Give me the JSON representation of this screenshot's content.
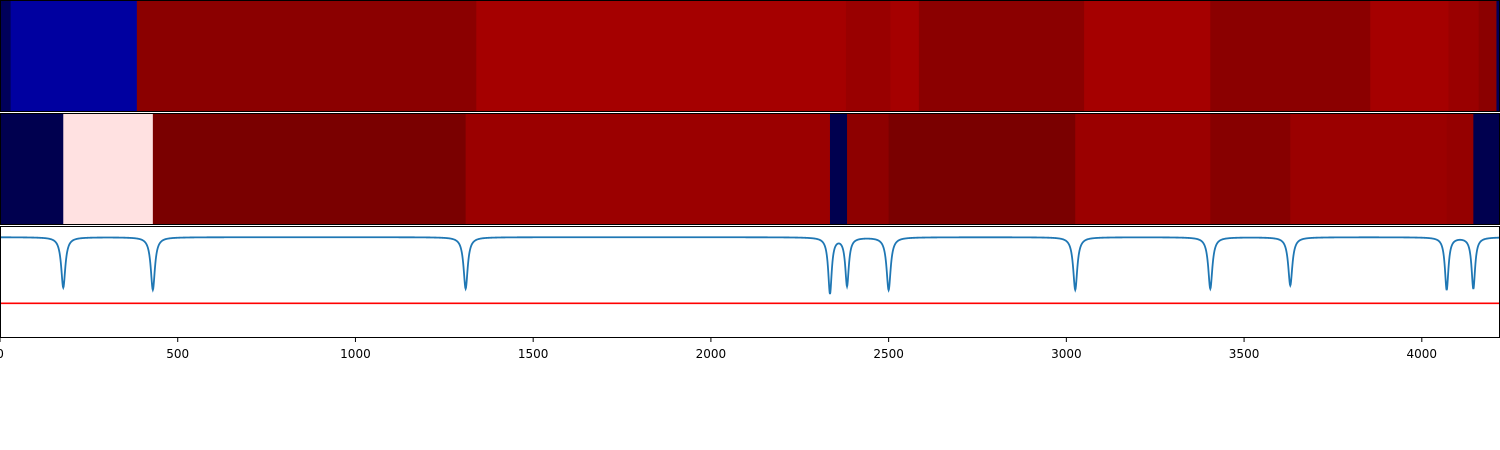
{
  "chart_data": {
    "type": "heatmap",
    "title": "",
    "xlabel": "",
    "ylabel": "",
    "xlim": [
      0,
      4220
    ],
    "x_ticks": [
      0,
      500,
      1000,
      1500,
      2000,
      2500,
      3000,
      3500,
      4000
    ],
    "x_tick_labels": [
      "0",
      "500",
      "1000",
      "1500",
      "2000",
      "2500",
      "3000",
      "3500",
      "4000"
    ],
    "grid": false,
    "legend": "none",
    "panels": [
      {
        "type": "heatmap-strip",
        "segments": [
          {
            "start": 0,
            "end": 30,
            "color": "#00005a"
          },
          {
            "start": 30,
            "end": 385,
            "color": "#0000a0"
          },
          {
            "start": 385,
            "end": 1340,
            "color": "#8b0000"
          },
          {
            "start": 1340,
            "end": 2380,
            "color": "#a50000"
          },
          {
            "start": 2380,
            "end": 2505,
            "color": "#990000"
          },
          {
            "start": 2505,
            "end": 2585,
            "color": "#a50000"
          },
          {
            "start": 2585,
            "end": 3050,
            "color": "#8b0000"
          },
          {
            "start": 3050,
            "end": 3405,
            "color": "#a50000"
          },
          {
            "start": 3405,
            "end": 3855,
            "color": "#8b0000"
          },
          {
            "start": 3855,
            "end": 4075,
            "color": "#a50000"
          },
          {
            "start": 4075,
            "end": 4160,
            "color": "#9a0000"
          },
          {
            "start": 4160,
            "end": 4210,
            "color": "#8b0000"
          },
          {
            "start": 4210,
            "end": 4220,
            "color": "#00005a"
          }
        ]
      },
      {
        "type": "heatmap-strip",
        "segments": [
          {
            "start": 0,
            "end": 178,
            "color": "#00004f"
          },
          {
            "start": 178,
            "end": 430,
            "color": "#ffe1e1"
          },
          {
            "start": 430,
            "end": 1310,
            "color": "#7a0000"
          },
          {
            "start": 1310,
            "end": 2335,
            "color": "#9b0000"
          },
          {
            "start": 2335,
            "end": 2383,
            "color": "#00004f"
          },
          {
            "start": 2383,
            "end": 2500,
            "color": "#8e0000"
          },
          {
            "start": 2500,
            "end": 3025,
            "color": "#7a0000"
          },
          {
            "start": 3025,
            "end": 3405,
            "color": "#9b0000"
          },
          {
            "start": 3405,
            "end": 3630,
            "color": "#870000"
          },
          {
            "start": 3630,
            "end": 4070,
            "color": "#9b0000"
          },
          {
            "start": 4070,
            "end": 4145,
            "color": "#950000"
          },
          {
            "start": 4145,
            "end": 4220,
            "color": "#00004f"
          }
        ]
      },
      {
        "type": "line",
        "ylim": [
          0,
          1
        ],
        "series": [
          {
            "color": "#1f77b4",
            "baseline": 0.9,
            "dips": [
              {
                "x": 178,
                "depth": 0.45,
                "width": 7
              },
              {
                "x": 430,
                "depth": 0.47,
                "width": 7
              },
              {
                "x": 1310,
                "depth": 0.46,
                "width": 7
              },
              {
                "x": 2335,
                "depth": 0.5,
                "width": 6
              },
              {
                "x": 2383,
                "depth": 0.43,
                "width": 6
              },
              {
                "x": 2500,
                "depth": 0.47,
                "width": 7
              },
              {
                "x": 3025,
                "depth": 0.47,
                "width": 7
              },
              {
                "x": 3405,
                "depth": 0.46,
                "width": 7
              },
              {
                "x": 3630,
                "depth": 0.43,
                "width": 7
              },
              {
                "x": 4070,
                "depth": 0.47,
                "width": 6
              },
              {
                "x": 4145,
                "depth": 0.46,
                "width": 6
              }
            ]
          },
          {
            "color": "#ff0000",
            "y": 0.31
          }
        ]
      }
    ]
  }
}
